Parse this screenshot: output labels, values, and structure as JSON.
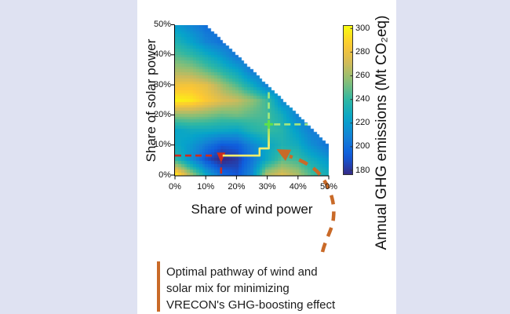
{
  "caption": {
    "lines": [
      "Optimal pathway of wind and",
      "solar mix for minimizing",
      "VRECON's GHG-boosting effect"
    ]
  },
  "colors": {
    "background": "#dfe2f2",
    "panel": "#ffffff",
    "pathway_yellow": "#f2ee6e",
    "optimal_red": "#cd2b1d",
    "endpoint_green": "#5ee04b",
    "green_dash": "#a6e87c",
    "callout_orange": "#c96a28",
    "axis_text": "#111111"
  },
  "chart_data": {
    "type": "heatmap",
    "xlabel": "Share of wind power",
    "ylabel": "Share of solar power",
    "colorbar_label": "Annual GHG emissions (Mt CO₂eq)",
    "x_ticks": [
      "0%",
      "10%",
      "20%",
      "30%",
      "40%",
      "50%"
    ],
    "y_ticks": [
      "0%",
      "10%",
      "20%",
      "30%",
      "40%",
      "50%"
    ],
    "colorbar_ticks": [
      "180",
      "200",
      "220",
      "240",
      "260",
      "280",
      "300"
    ],
    "value_range": [
      180,
      300
    ],
    "colormap": "parula",
    "grid_on": false,
    "feasibility": "wind_pct + solar_pct <= 60",
    "wind_pct": [
      0,
      5,
      10,
      15,
      20,
      25,
      30,
      35,
      40,
      45,
      50
    ],
    "solar_pct": [
      0,
      5,
      10,
      15,
      20,
      25,
      30,
      35,
      40,
      45,
      50
    ],
    "values_mt_co2eq": [
      [
        292,
        258,
        225,
        200,
        193,
        213,
        262,
        273,
        262,
        243,
        232
      ],
      [
        238,
        215,
        192,
        178,
        185,
        205,
        228,
        247,
        242,
        230,
        220
      ],
      [
        228,
        220,
        207,
        195,
        197,
        212,
        226,
        235,
        230,
        215,
        205
      ],
      [
        226,
        230,
        230,
        228,
        226,
        236,
        242,
        237,
        222,
        208,
        null
      ],
      [
        256,
        257,
        254,
        249,
        251,
        247,
        244,
        231,
        211,
        null,
        null
      ],
      [
        297,
        294,
        284,
        274,
        268,
        257,
        243,
        214,
        null,
        null,
        null
      ],
      [
        281,
        282,
        276,
        261,
        246,
        230,
        210,
        null,
        null,
        null,
        null
      ],
      [
        262,
        259,
        249,
        238,
        226,
        208,
        null,
        null,
        null,
        null,
        null
      ],
      [
        247,
        241,
        231,
        220,
        206,
        null,
        null,
        null,
        null,
        null,
        null
      ],
      [
        234,
        224,
        211,
        203,
        null,
        null,
        null,
        null,
        null,
        null,
        null
      ],
      [
        222,
        213,
        203,
        null,
        null,
        null,
        null,
        null,
        null,
        null,
        null
      ]
    ],
    "annotations": {
      "optimal_start": {
        "wind_pct": 15,
        "solar_pct": 6
      },
      "optimal_end": {
        "wind_pct": 30,
        "solar_pct": 17
      },
      "pathway_pct": [
        [
          15.5,
          6.6
        ],
        [
          27.5,
          6.6
        ],
        [
          27.5,
          9
        ],
        [
          30.5,
          9
        ],
        [
          30.5,
          16
        ]
      ],
      "red_dash_h_pct": [
        [
          0,
          6.6
        ],
        [
          12.8,
          6.6
        ]
      ],
      "red_dash_v_pct": [
        [
          15,
          0.6
        ],
        [
          15,
          4.2
        ]
      ],
      "green_dash_v_pct": [
        [
          30.5,
          18.8
        ],
        [
          30.5,
          28.6
        ]
      ],
      "green_dash_h_pct": [
        [
          32.2,
          17
        ],
        [
          43.2,
          17
        ]
      ],
      "big_arrow_target": {
        "wind_pct": 33,
        "solar_pct": 8.7
      }
    }
  }
}
